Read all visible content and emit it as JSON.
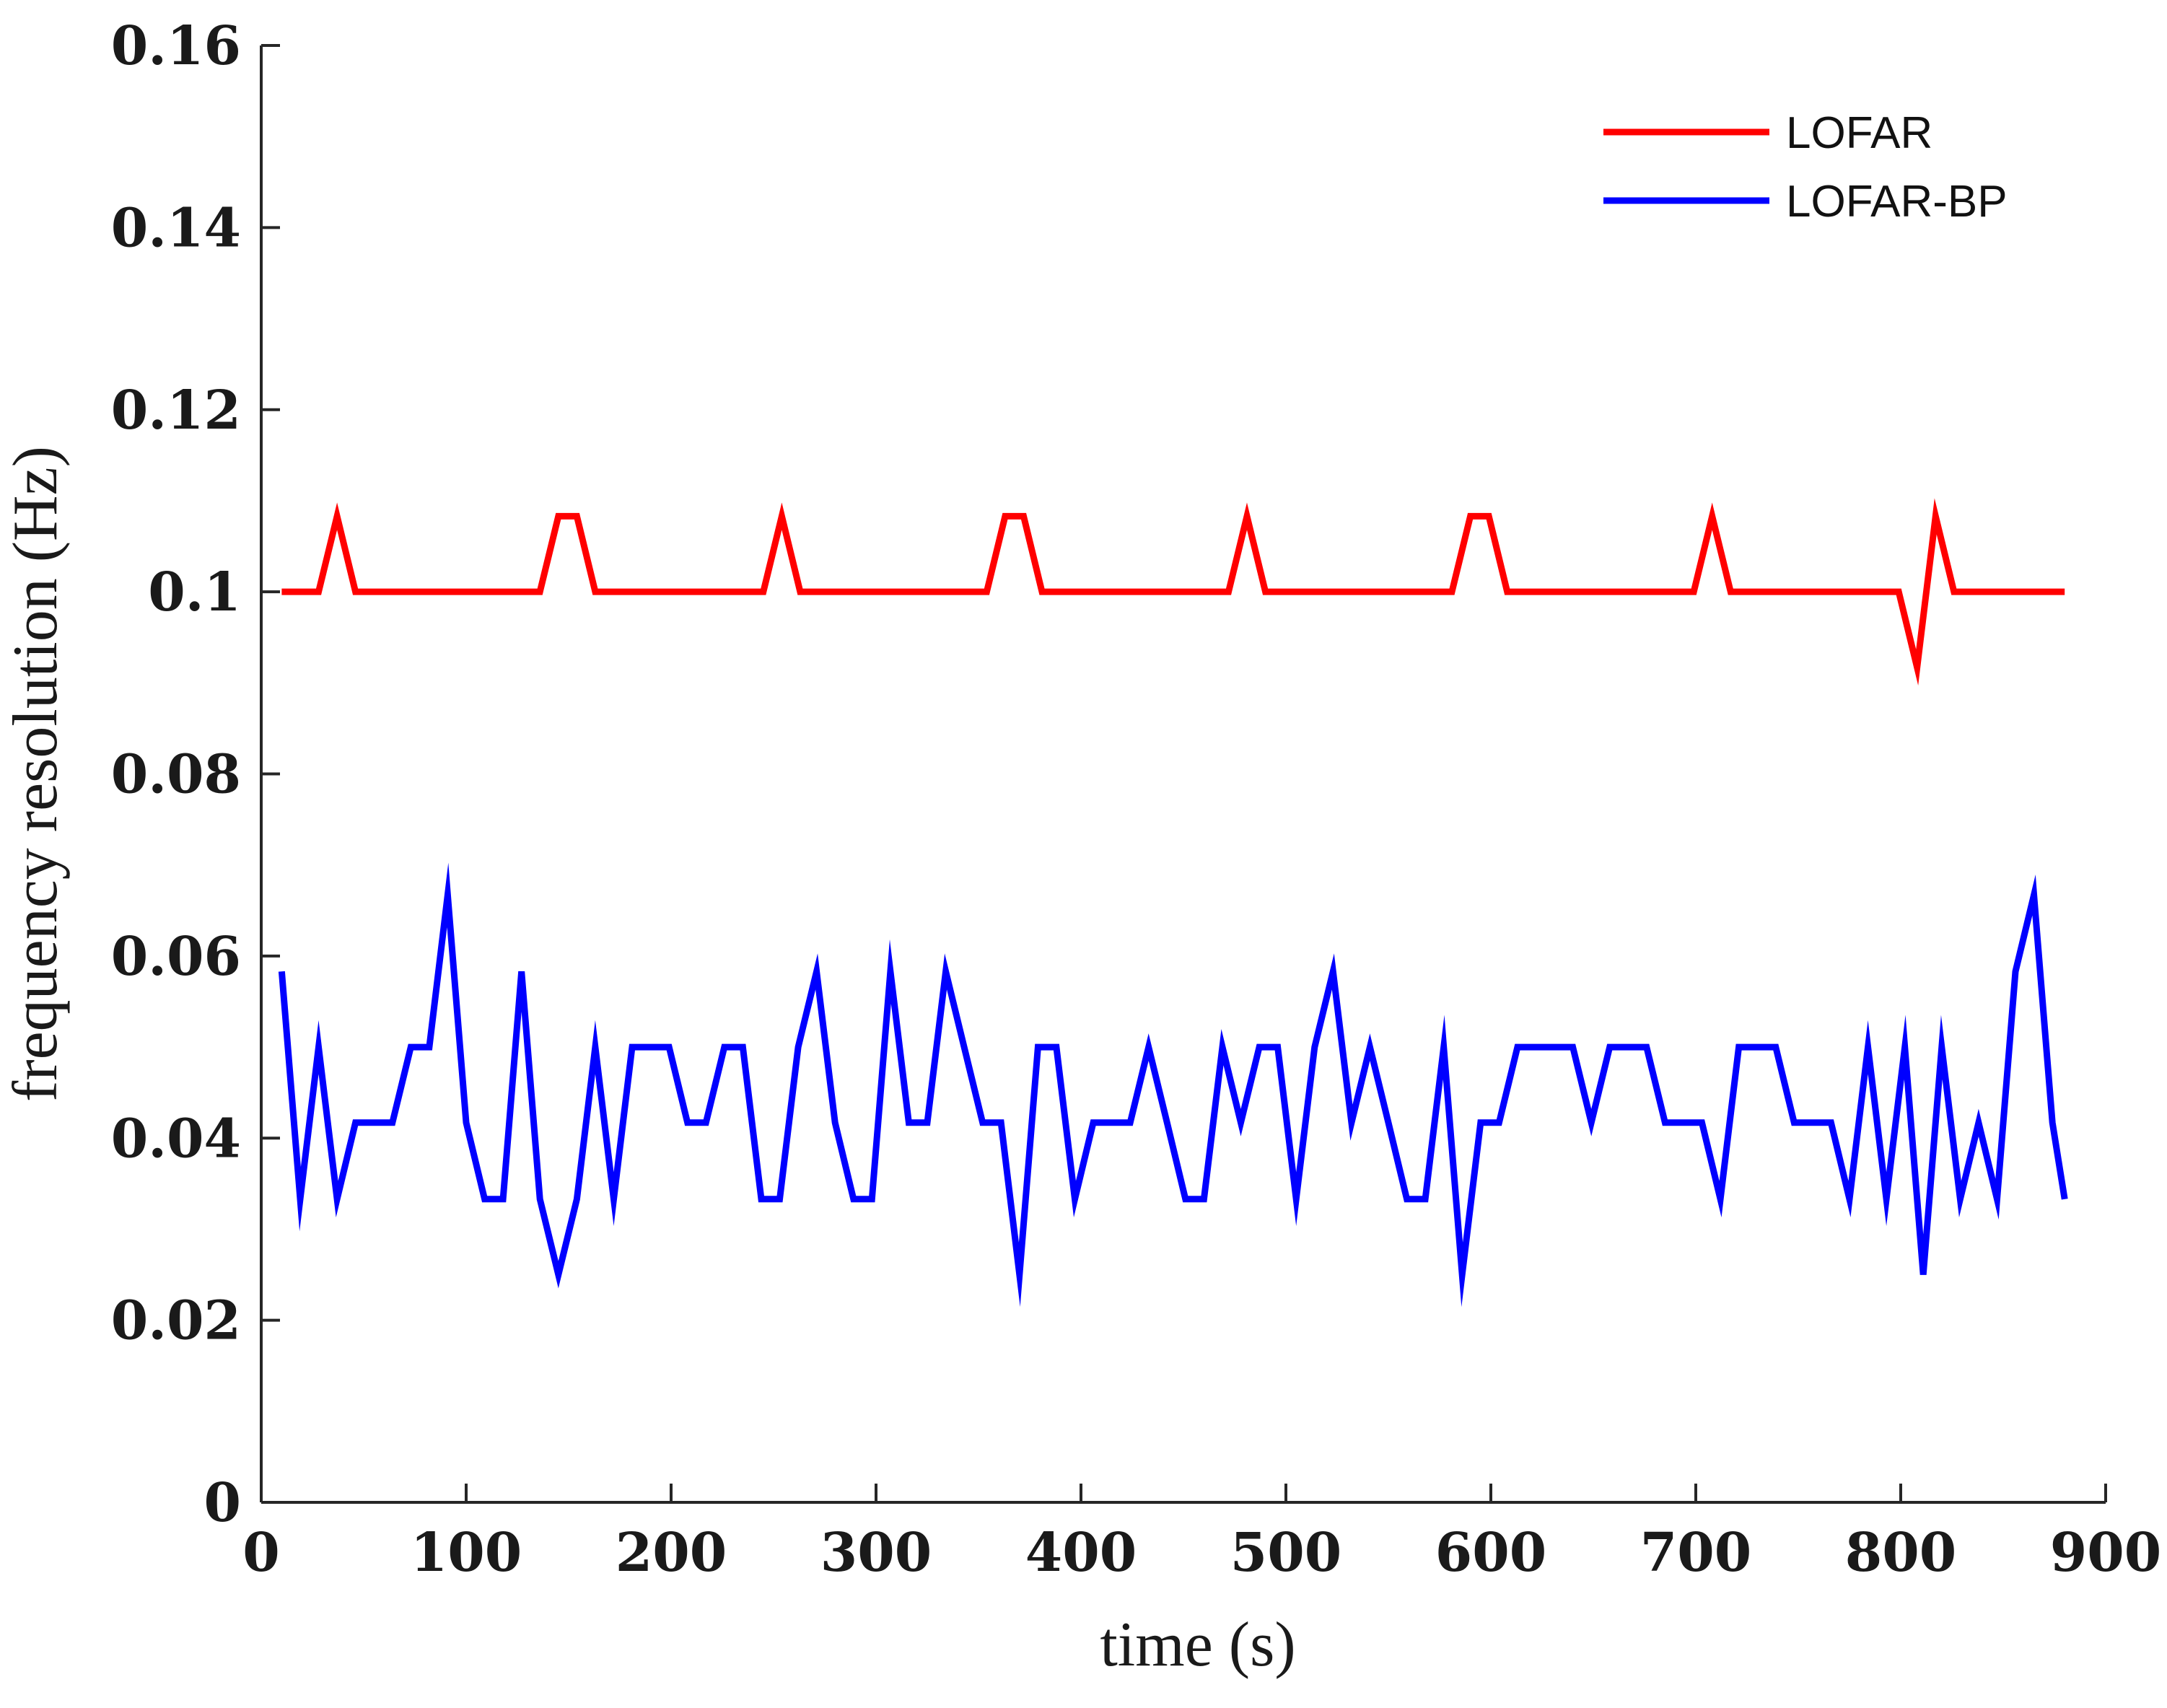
{
  "chart_data": {
    "type": "line",
    "title": "",
    "xlabel": "time (s)",
    "ylabel": "frequency resolution (Hz)",
    "xlim": [
      0,
      900
    ],
    "ylim": [
      0,
      0.16
    ],
    "xticks": [
      0,
      100,
      200,
      300,
      400,
      500,
      600,
      700,
      800,
      900
    ],
    "xtick_labels": [
      "0",
      "100",
      "200",
      "300",
      "400",
      "500",
      "600",
      "700",
      "800",
      "900"
    ],
    "yticks": [
      0,
      0.02,
      0.04,
      0.06,
      0.08,
      0.1,
      0.12,
      0.14,
      0.16
    ],
    "ytick_labels": [
      "0",
      "0.02",
      "0.04",
      "0.06",
      "0.08",
      "0.1",
      "0.12",
      "0.14",
      "0.16"
    ],
    "grid": false,
    "legend_position": "top-right",
    "series": [
      {
        "name": "LOFAR",
        "color": "#ff0000",
        "x": [
          10,
          28,
          37,
          46,
          136,
          145,
          154,
          163,
          245,
          254,
          263,
          354,
          363,
          372,
          381,
          472,
          481,
          490,
          581,
          590,
          599,
          608,
          699,
          708,
          717,
          799,
          808,
          817,
          826,
          880
        ],
        "values": [
          0.1,
          0.1,
          0.1083,
          0.1,
          0.1,
          0.1083,
          0.1083,
          0.1,
          0.1,
          0.1083,
          0.1,
          0.1,
          0.1083,
          0.1083,
          0.1,
          0.1,
          0.1083,
          0.1,
          0.1,
          0.1083,
          0.1083,
          0.1,
          0.1,
          0.1083,
          0.1,
          0.1,
          0.0917,
          0.1083,
          0.1,
          0.1
        ]
      },
      {
        "name": "LOFAR-BP",
        "color": "#0000ff",
        "x": [
          10,
          19,
          28,
          37,
          46,
          64,
          73,
          82,
          91,
          100,
          109,
          118,
          127,
          136,
          145,
          154,
          163,
          172,
          181,
          199,
          208,
          217,
          226,
          235,
          244,
          253,
          262,
          271,
          280,
          289,
          298,
          307,
          316,
          325,
          334,
          343,
          352,
          361,
          370,
          379,
          388,
          397,
          406,
          424,
          433,
          442,
          451,
          460,
          469,
          478,
          487,
          496,
          505,
          514,
          523,
          532,
          541,
          550,
          559,
          568,
          577,
          586,
          595,
          604,
          613,
          640,
          649,
          658,
          676,
          685,
          703,
          712,
          721,
          739,
          748,
          766,
          775,
          784,
          793,
          802,
          811,
          820,
          829,
          838,
          847,
          856,
          865,
          874,
          880
        ],
        "values": [
          0.0583,
          0.0333,
          0.05,
          0.0333,
          0.0417,
          0.0417,
          0.05,
          0.05,
          0.0667,
          0.0417,
          0.0333,
          0.0333,
          0.0583,
          0.0333,
          0.025,
          0.0333,
          0.05,
          0.0333,
          0.05,
          0.05,
          0.0417,
          0.0417,
          0.05,
          0.05,
          0.0333,
          0.0333,
          0.05,
          0.0583,
          0.0417,
          0.0333,
          0.0333,
          0.0583,
          0.0417,
          0.0417,
          0.0583,
          0.05,
          0.0417,
          0.0417,
          0.025,
          0.05,
          0.05,
          0.0333,
          0.0417,
          0.0417,
          0.05,
          0.0417,
          0.0333,
          0.0333,
          0.05,
          0.0417,
          0.05,
          0.05,
          0.0333,
          0.05,
          0.0583,
          0.0417,
          0.05,
          0.0417,
          0.0333,
          0.0333,
          0.05,
          0.025,
          0.0417,
          0.0417,
          0.05,
          0.05,
          0.0417,
          0.05,
          0.05,
          0.0417,
          0.0417,
          0.0333,
          0.05,
          0.05,
          0.0417,
          0.0417,
          0.0333,
          0.05,
          0.0333,
          0.05,
          0.025,
          0.05,
          0.0333,
          0.0417,
          0.0333,
          0.0583,
          0.0667,
          0.0417,
          0.0333
        ]
      }
    ]
  }
}
